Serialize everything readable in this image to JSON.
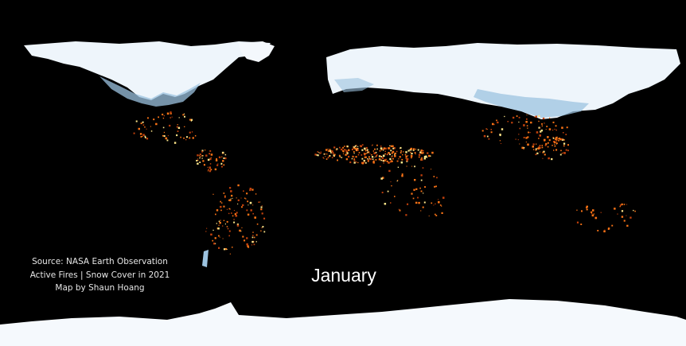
{
  "map": {
    "month_label": "January",
    "credits": {
      "line1": "Source: NASA Earth Observation",
      "line2": "Active Fires | Snow Cover in 2021",
      "line3": "Map by Shaun Hoang"
    },
    "colors": {
      "background": "#000000",
      "snow": "#eef5fb",
      "snow_edge": "#9cc3e0",
      "fire_low": "#c2410c",
      "fire_mid": "#f97316",
      "fire_high": "#fde68a"
    }
  }
}
